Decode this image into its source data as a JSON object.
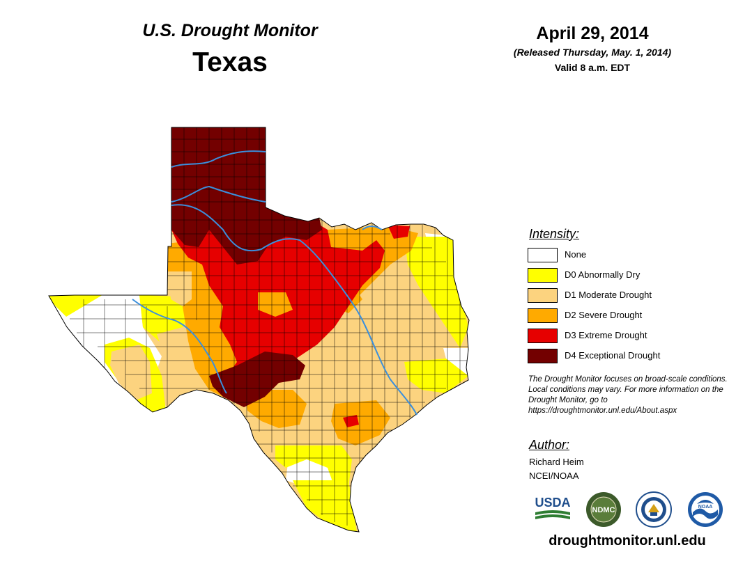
{
  "header": {
    "title": "U.S. Drought Monitor",
    "state": "Texas"
  },
  "date": {
    "main": "April 29, 2014",
    "released": "(Released Thursday, May. 1, 2014)",
    "valid": "Valid 8 a.m. EDT"
  },
  "legend": {
    "title": "Intensity:",
    "items": [
      {
        "label": "None",
        "color": "#ffffff"
      },
      {
        "label": "D0 Abnormally Dry",
        "color": "#ffff00"
      },
      {
        "label": "D1 Moderate Drought",
        "color": "#fcd37f"
      },
      {
        "label": "D2 Severe Drought",
        "color": "#ffaa00"
      },
      {
        "label": "D3 Extreme Drought",
        "color": "#e60000"
      },
      {
        "label": "D4 Exceptional Drought",
        "color": "#730000"
      }
    ]
  },
  "note": "The Drought Monitor focuses on broad-scale conditions. Local conditions may vary. For more information on the Drought Monitor, go to https://droughtmonitor.unl.edu/About.aspx",
  "author": {
    "title": "Author:",
    "name": "Richard Heim",
    "org": "NCEI/NOAA"
  },
  "logos": {
    "usda": "USDA",
    "ndmc": "NDMC",
    "commerce": "commerce-seal",
    "noaa": "NOAA"
  },
  "site_url": "droughtmonitor.unl.edu",
  "colors": {
    "river": "#3b8fdc",
    "county_line": "#000000"
  }
}
